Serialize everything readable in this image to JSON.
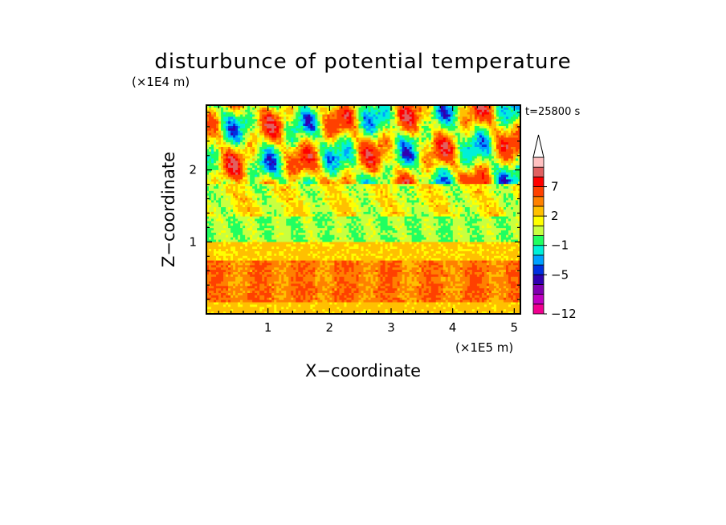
{
  "chart_data": {
    "type": "heatmap",
    "title": "disturbunce of potential temperature",
    "time_label": "t=25800 s",
    "xlabel": "X−coordinate",
    "ylabel": "Z−coordinate",
    "x_unit": "(×1E5 m)",
    "y_unit": "(×1E4 m)",
    "x_ticks": [
      "1",
      "2",
      "3",
      "4",
      "5"
    ],
    "y_ticks": [
      "1",
      "2"
    ],
    "xlim": [
      0,
      5.1
    ],
    "ylim": [
      0,
      2.9
    ],
    "colorbar": {
      "tick_labels": [
        "7",
        "2",
        "−1",
        "−5",
        "−12"
      ],
      "colors": [
        "#f00090",
        "#c000c0",
        "#8000b0",
        "#3000b0",
        "#0030e0",
        "#00a0ff",
        "#00f0d8",
        "#20ff60",
        "#c8ff40",
        "#ffff00",
        "#ffc000",
        "#ff8000",
        "#ff4000",
        "#ff0000",
        "#e06060",
        "#ffc0c0"
      ],
      "extend_max": true
    },
    "field_bands": [
      {
        "z_range": [
          0.0,
          0.15
        ],
        "dominant": "yellow"
      },
      {
        "z_range": [
          0.15,
          0.75
        ],
        "dominant": "orange-yellow"
      },
      {
        "z_range": [
          0.75,
          1.0
        ],
        "dominant": "yellow"
      },
      {
        "z_range": [
          1.0,
          1.35
        ],
        "dominant": "green"
      },
      {
        "z_range": [
          1.35,
          1.8
        ],
        "dominant": "yellow-green"
      },
      {
        "z_range": [
          1.8,
          2.9
        ],
        "dominant": "mixed orange/blue wave pattern"
      }
    ]
  }
}
